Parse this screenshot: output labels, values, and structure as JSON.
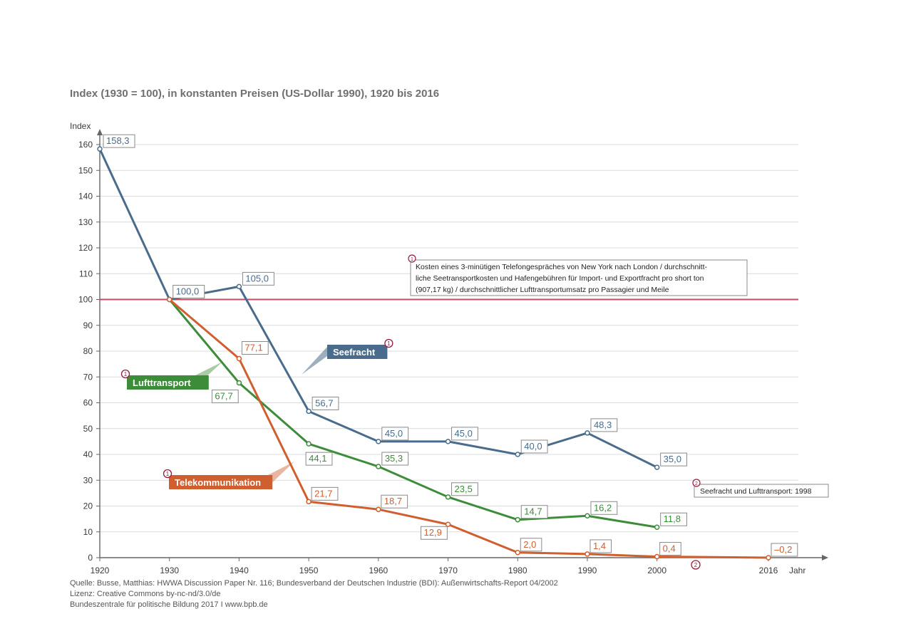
{
  "chart_data": {
    "type": "line",
    "title": "Index (1930 = 100), in konstanten Preisen (US-Dollar 1990), 1920 bis 2016",
    "ylabel": "Index",
    "xlabel": "Jahr",
    "ylim": [
      0,
      160
    ],
    "yticks": [
      0,
      10,
      20,
      30,
      40,
      50,
      60,
      70,
      80,
      90,
      100,
      110,
      120,
      130,
      140,
      150,
      160
    ],
    "x": [
      1920,
      1930,
      1940,
      1950,
      1960,
      1970,
      1980,
      1990,
      2000,
      2016
    ],
    "xtick_labels": [
      "1920",
      "1930",
      "1940",
      "1950",
      "1960",
      "1970",
      "1980",
      "1990",
      "2000",
      "2016"
    ],
    "grid": true,
    "reference_line": {
      "y": 100,
      "color": "#c44a6a"
    },
    "series": [
      {
        "name": "Seefracht",
        "color": "#4a6c8c",
        "x": [
          1920,
          1930,
          1940,
          1950,
          1960,
          1970,
          1980,
          1990,
          2000
        ],
        "values": [
          158.3,
          100.0,
          105.0,
          56.7,
          45.0,
          45.0,
          40.0,
          48.3,
          35.0
        ],
        "labels": [
          "158,3",
          "100,0",
          "105,0",
          "56,7",
          "45,0",
          "45,0",
          "40,0",
          "48,3",
          "35,0"
        ]
      },
      {
        "name": "Lufttransport",
        "color": "#3d8c3a",
        "x": [
          1930,
          1940,
          1950,
          1960,
          1970,
          1980,
          1990,
          2000
        ],
        "values": [
          100.0,
          67.7,
          44.1,
          35.3,
          23.5,
          14.7,
          16.2,
          11.8
        ],
        "labels": [
          "",
          "67,7",
          "44,1",
          "35,3",
          "23,5",
          "14,7",
          "16,2",
          "11,8"
        ]
      },
      {
        "name": "Telekommunikation",
        "color": "#cf5f2e",
        "x": [
          1930,
          1940,
          1950,
          1960,
          1970,
          1980,
          1990,
          2000,
          2016
        ],
        "values": [
          100.0,
          77.1,
          21.7,
          18.7,
          12.9,
          2.0,
          1.4,
          0.4,
          -0.2
        ],
        "labels": [
          "",
          "77,1",
          "21,7",
          "18,7",
          "12,9",
          "2,0",
          "1,4",
          "0,4",
          "–0,2"
        ]
      }
    ],
    "note1": {
      "marker": "1",
      "lines": [
        "Kosten eines 3-minütigen Telefongespräches von New York nach London / durchschnitt-",
        "liche Seetransportkosten und Hafengebühren für Import- und Exportfracht pro short ton",
        "(907,17 kg) / durchschnittlicher Lufttransportumsatz pro Passagier und Meile"
      ]
    },
    "note2": {
      "marker": "2",
      "text": "Seefracht und Lufttransport: 1998"
    },
    "source_lines": [
      "Quelle: Busse, Matthias: HWWA Discussion Paper Nr. 116; Bundesverband der Deutschen Industrie (BDI): Außenwirtschafts-Report 04/2002",
      "Lizenz: Creative Commons by-nc-nd/3.0/de",
      "Bundeszentrale für politische Bildung 2017  I  www.bpb.de"
    ]
  }
}
